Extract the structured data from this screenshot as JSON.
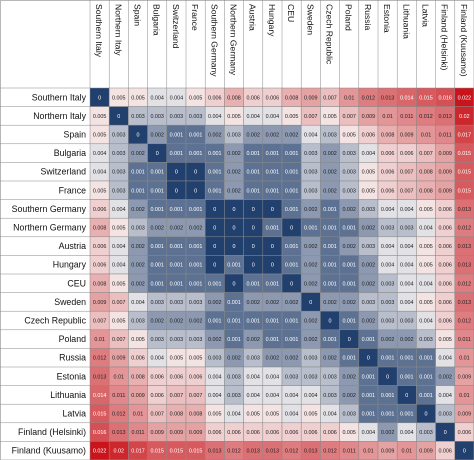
{
  "colors": {
    "low": "#22406e",
    "mid": "#f6f2f1",
    "high": "#c8141a",
    "grid": "#888888"
  },
  "chart_data": {
    "type": "heatmap",
    "title": "",
    "xlabel": "",
    "ylabel": "",
    "legend": "none",
    "grid": true,
    "color_range": [
      0,
      0.022
    ],
    "labels": [
      "Southern Italy",
      "Northern Italy",
      "Spain",
      "Bulgaria",
      "Switzerland",
      "France",
      "Southern Germany",
      "Northern Germany",
      "Austria",
      "Hungary",
      "CEU",
      "Sweden",
      "Czech Republic",
      "Poland",
      "Russia",
      "Estonia",
      "Lithuania",
      "Latvia",
      "Finland (Helsinki)",
      "Finland (Kuusamo)"
    ],
    "values": [
      [
        0,
        0.005,
        0.005,
        0.004,
        0.004,
        0.005,
        0.006,
        0.008,
        0.006,
        0.006,
        0.008,
        0.009,
        0.007,
        0.01,
        0.012,
        0.013,
        0.014,
        0.015,
        0.016,
        0.022
      ],
      [
        0.005,
        0,
        0.003,
        0.003,
        0.003,
        0.003,
        0.004,
        0.005,
        0.004,
        0.004,
        0.005,
        0.007,
        0.005,
        0.007,
        0.009,
        0.01,
        0.011,
        0.012,
        0.013,
        0.02
      ],
      [
        0.005,
        0.003,
        0,
        0.002,
        0.001,
        0.001,
        0.002,
        0.003,
        0.002,
        0.002,
        0.002,
        0.004,
        0.003,
        0.005,
        0.006,
        0.008,
        0.009,
        0.01,
        0.011,
        0.017
      ],
      [
        0.004,
        0.003,
        0.002,
        0,
        0.001,
        0.001,
        0.001,
        0.002,
        0.001,
        0.001,
        0.001,
        0.003,
        0.002,
        0.003,
        0.004,
        0.006,
        0.006,
        0.007,
        0.009,
        0.015
      ],
      [
        0.004,
        0.003,
        0.001,
        0.001,
        0,
        0,
        0.001,
        0.002,
        0.001,
        0.001,
        0.001,
        0.003,
        0.002,
        0.003,
        0.005,
        0.006,
        0.007,
        0.008,
        0.009,
        0.015
      ],
      [
        0.005,
        0.003,
        0.001,
        0.001,
        0,
        0,
        0.001,
        0.002,
        0.001,
        0.001,
        0.001,
        0.003,
        0.002,
        0.003,
        0.005,
        0.006,
        0.007,
        0.008,
        0.009,
        0.015
      ],
      [
        0.006,
        0.004,
        0.002,
        0.001,
        0.001,
        0.001,
        0,
        0,
        0,
        0,
        0.001,
        0.002,
        0.001,
        0.002,
        0.003,
        0.004,
        0.004,
        0.005,
        0.006,
        0.013
      ],
      [
        0.008,
        0.005,
        0.003,
        0.002,
        0.002,
        0.002,
        0,
        0,
        0,
        0.001,
        0,
        0.001,
        0.001,
        0.001,
        0.002,
        0.003,
        0.003,
        0.004,
        0.006,
        0.012
      ],
      [
        0.006,
        0.004,
        0.002,
        0.001,
        0.001,
        0.001,
        0,
        0,
        0,
        0,
        0.001,
        0.002,
        0.001,
        0.002,
        0.003,
        0.004,
        0.004,
        0.005,
        0.006,
        0.013
      ],
      [
        0.006,
        0.004,
        0.002,
        0.001,
        0.001,
        0.001,
        0,
        0.001,
        0,
        0,
        0.001,
        0.002,
        0.001,
        0.001,
        0.002,
        0.004,
        0.004,
        0.005,
        0.006,
        0.013
      ],
      [
        0.008,
        0.005,
        0.002,
        0.001,
        0.001,
        0.001,
        0.001,
        0,
        0.001,
        0.001,
        0,
        0.002,
        0.001,
        0.001,
        0.002,
        0.003,
        0.004,
        0.004,
        0.006,
        0.012
      ],
      [
        0.009,
        0.007,
        0.004,
        0.003,
        0.003,
        0.003,
        0.002,
        0.001,
        0.002,
        0.002,
        0.002,
        0,
        0.002,
        0.002,
        0.003,
        0.003,
        0.004,
        0.005,
        0.006,
        0.013
      ],
      [
        0.007,
        0.005,
        0.003,
        0.002,
        0.002,
        0.002,
        0.001,
        0.001,
        0.001,
        0.001,
        0.001,
        0.002,
        0,
        0.001,
        0.002,
        0.003,
        0.003,
        0.004,
        0.006,
        0.012
      ],
      [
        0.01,
        0.007,
        0.005,
        0.003,
        0.003,
        0.003,
        0.002,
        0.001,
        0.002,
        0.001,
        0.001,
        0.002,
        0.001,
        0,
        0.001,
        0.002,
        0.002,
        0.003,
        0.005,
        0.011
      ],
      [
        0.012,
        0.009,
        0.006,
        0.004,
        0.005,
        0.005,
        0.003,
        0.002,
        0.003,
        0.002,
        0.002,
        0.003,
        0.002,
        0.001,
        0,
        0.001,
        0.001,
        0.001,
        0.004,
        0.01
      ],
      [
        0.013,
        0.01,
        0.008,
        0.006,
        0.006,
        0.006,
        0.004,
        0.003,
        0.004,
        0.004,
        0.003,
        0.003,
        0.003,
        0.002,
        0.001,
        0,
        0.001,
        0.001,
        0.002,
        0.009
      ],
      [
        0.014,
        0.011,
        0.009,
        0.006,
        0.007,
        0.007,
        0.004,
        0.003,
        0.004,
        0.004,
        0.004,
        0.004,
        0.003,
        0.002,
        0.001,
        0.001,
        0,
        0.001,
        0.004,
        0.01
      ],
      [
        0.015,
        0.012,
        0.01,
        0.007,
        0.008,
        0.008,
        0.005,
        0.004,
        0.005,
        0.005,
        0.004,
        0.005,
        0.004,
        0.003,
        0.001,
        0.001,
        0.001,
        0,
        0.003,
        0.009
      ],
      [
        0.016,
        0.013,
        0.011,
        0.009,
        0.009,
        0.009,
        0.006,
        0.006,
        0.006,
        0.006,
        0.006,
        0.006,
        0.006,
        0.005,
        0.004,
        0.002,
        0.004,
        0.003,
        0,
        0.006
      ],
      [
        0.022,
        0.02,
        0.017,
        0.015,
        0.015,
        0.015,
        0.013,
        0.012,
        0.013,
        0.013,
        0.012,
        0.013,
        0.012,
        0.011,
        0.01,
        0.009,
        0.01,
        0.009,
        0.006,
        0
      ]
    ]
  }
}
